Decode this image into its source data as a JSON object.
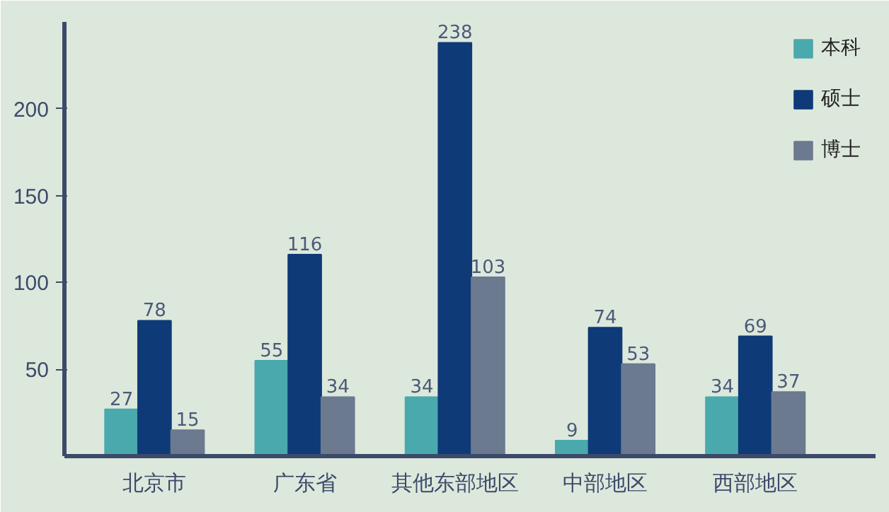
{
  "chart_data": {
    "type": "bar",
    "categories": [
      "北京市",
      "广东省",
      "其他东部地区",
      "中部地区",
      "西部地区"
    ],
    "series": [
      {
        "name": "本科",
        "color": "#4aa9ad",
        "values": [
          27,
          55,
          34,
          9,
          34
        ]
      },
      {
        "name": "硕士",
        "color": "#0f3a78",
        "values": [
          78,
          116,
          238,
          74,
          69
        ]
      },
      {
        "name": "博士",
        "color": "#6b7a8f",
        "values": [
          15,
          34,
          103,
          53,
          37
        ]
      }
    ],
    "ylim": [
      0,
      250
    ],
    "yticks": [
      50,
      100,
      150,
      200
    ],
    "grid": false,
    "legend": "top right",
    "data_labels": true
  }
}
